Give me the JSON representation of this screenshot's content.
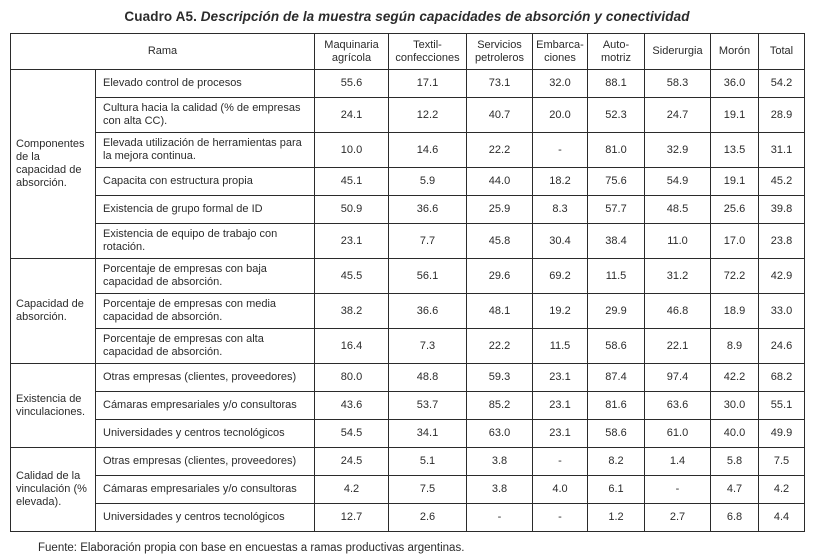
{
  "title": {
    "prefix": "Cuadro A5.",
    "text": "Descripción de la muestra según capacidades de absorción y conectividad"
  },
  "table": {
    "rama_header": "Rama",
    "columns": [
      "Maquinaria agrícola",
      "Textil-confecciones",
      "Servicios petroleros",
      "Embarca-ciones",
      "Auto-motriz",
      "Siderurgia",
      "Morón",
      "Total"
    ],
    "groups": [
      {
        "label": "Componentes de la capacidad de absorción.",
        "rows": [
          {
            "label": "Elevado control de procesos",
            "values": [
              "55.6",
              "17.1",
              "73.1",
              "32.0",
              "88.1",
              "58.3",
              "36.0",
              "54.2"
            ]
          },
          {
            "label": "Cultura hacia la calidad (% de empresas con alta CC).",
            "values": [
              "24.1",
              "12.2",
              "40.7",
              "20.0",
              "52.3",
              "24.7",
              "19.1",
              "28.9"
            ]
          },
          {
            "label": "Elevada utilización de herramientas para la mejora continua.",
            "values": [
              "10.0",
              "14.6",
              "22.2",
              "-",
              "81.0",
              "32.9",
              "13.5",
              "31.1"
            ]
          },
          {
            "label": "Capacita con estructura propia",
            "values": [
              "45.1",
              "5.9",
              "44.0",
              "18.2",
              "75.6",
              "54.9",
              "19.1",
              "45.2"
            ]
          },
          {
            "label": "Existencia de grupo formal de ID",
            "values": [
              "50.9",
              "36.6",
              "25.9",
              "8.3",
              "57.7",
              "48.5",
              "25.6",
              "39.8"
            ]
          },
          {
            "label": "Existencia de equipo de trabajo con rotación.",
            "values": [
              "23.1",
              "7.7",
              "45.8",
              "30.4",
              "38.4",
              "11.0",
              "17.0",
              "23.8"
            ]
          }
        ]
      },
      {
        "label": "Capacidad de absorción.",
        "rows": [
          {
            "label": "Porcentaje de empresas con baja capacidad de absorción.",
            "values": [
              "45.5",
              "56.1",
              "29.6",
              "69.2",
              "11.5",
              "31.2",
              "72.2",
              "42.9"
            ]
          },
          {
            "label": "Porcentaje de empresas con media capacidad de absorción.",
            "values": [
              "38.2",
              "36.6",
              "48.1",
              "19.2",
              "29.9",
              "46.8",
              "18.9",
              "33.0"
            ]
          },
          {
            "label": "Porcentaje de empresas con alta capacidad de absorción.",
            "values": [
              "16.4",
              "7.3",
              "22.2",
              "11.5",
              "58.6",
              "22.1",
              "8.9",
              "24.6"
            ]
          }
        ]
      },
      {
        "label": "Existencia de vinculaciones.",
        "rows": [
          {
            "label": "Otras empresas (clientes, proveedores)",
            "values": [
              "80.0",
              "48.8",
              "59.3",
              "23.1",
              "87.4",
              "97.4",
              "42.2",
              "68.2"
            ]
          },
          {
            "label": "Cámaras empresariales y/o consultoras",
            "values": [
              "43.6",
              "53.7",
              "85.2",
              "23.1",
              "81.6",
              "63.6",
              "30.0",
              "55.1"
            ]
          },
          {
            "label": "Universidades y centros tecnológicos",
            "values": [
              "54.5",
              "34.1",
              "63.0",
              "23.1",
              "58.6",
              "61.0",
              "40.0",
              "49.9"
            ]
          }
        ]
      },
      {
        "label": "Calidad de la vinculación (% elevada).",
        "rows": [
          {
            "label": "Otras empresas (clientes, proveedores)",
            "values": [
              "24.5",
              "5.1",
              "3.8",
              "-",
              "8.2",
              "1.4",
              "5.8",
              "7.5"
            ]
          },
          {
            "label": "Cámaras empresariales y/o consultoras",
            "values": [
              "4.2",
              "7.5",
              "3.8",
              "4.0",
              "6.1",
              "-",
              "4.7",
              "4.2"
            ]
          },
          {
            "label": "Universidades y centros tecnológicos",
            "values": [
              "12.7",
              "2.6",
              "-",
              "-",
              "1.2",
              "2.7",
              "6.8",
              "4.4"
            ]
          }
        ]
      }
    ]
  },
  "footer": {
    "source": "Fuente: Elaboración propia con base en encuestas a ramas productivas argentinas."
  },
  "colors": {
    "border": "#2b2b2b",
    "text": "#2b2b2b",
    "background": "#ffffff"
  }
}
